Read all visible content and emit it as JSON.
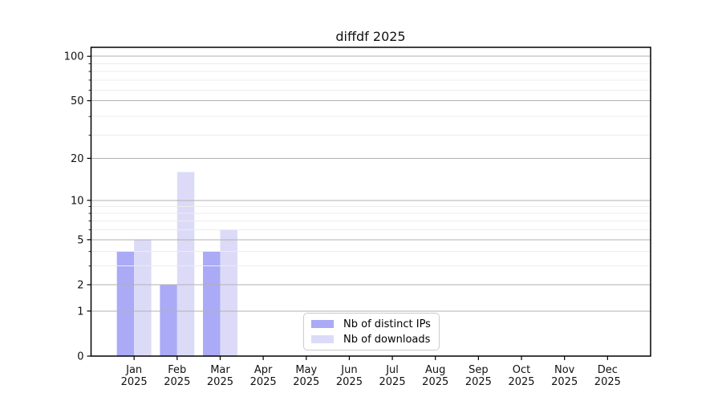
{
  "chart_data": {
    "type": "bar",
    "title": "diffdf 2025",
    "xlabel": "",
    "ylabel": "",
    "year": "2025",
    "categories": [
      "Jan",
      "Feb",
      "Mar",
      "Apr",
      "May",
      "Jun",
      "Jul",
      "Aug",
      "Sep",
      "Oct",
      "Nov",
      "Dec"
    ],
    "series": [
      {
        "name": "Nb of distinct IPs",
        "color": "#aaaaf6",
        "values": [
          4,
          2,
          4,
          0,
          0,
          0,
          0,
          0,
          0,
          0,
          0,
          0
        ]
      },
      {
        "name": "Nb of downloads",
        "color": "#dbdbf8",
        "values": [
          5,
          16,
          6,
          0,
          0,
          0,
          0,
          0,
          0,
          0,
          0,
          0
        ]
      }
    ],
    "yscale": "log1p",
    "ylim": [
      0,
      115
    ],
    "yticks": [
      0,
      1,
      2,
      5,
      10,
      20,
      50,
      100
    ],
    "minor_yticks": [
      3,
      4,
      6,
      7,
      8,
      9,
      29,
      39,
      59,
      69,
      79,
      89
    ],
    "grid": "on",
    "grid_above_bars": true,
    "legend_position": "lower center",
    "colors": {
      "spine": "#000000",
      "major_grid": "#b2b2b2",
      "minor_grid": "#ececec",
      "tick_text": "#111111"
    }
  }
}
